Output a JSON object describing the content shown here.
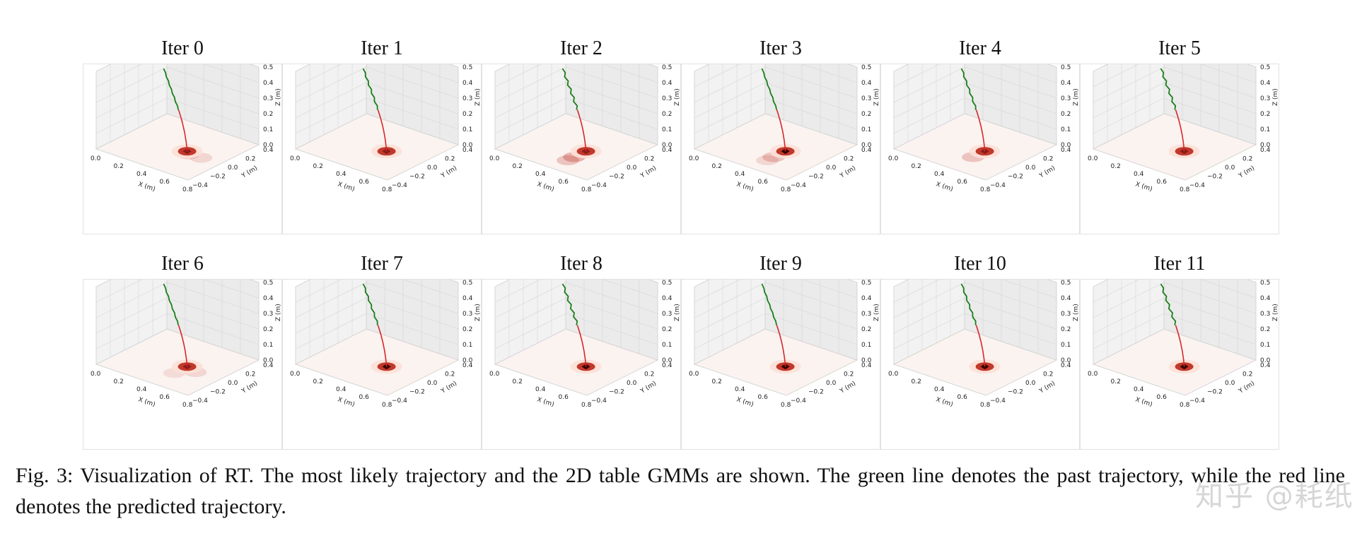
{
  "figure": {
    "panels": [
      {
        "title": "Iter 0",
        "hot": 1,
        "secondary": [
          [
            0.2,
            0.15,
            0.18
          ],
          [
            0.7,
            0.1,
            0.15
          ]
        ]
      },
      {
        "title": "Iter 1",
        "hot": 1,
        "secondary": []
      },
      {
        "title": "Iter 2",
        "hot": 1,
        "secondary": [
          [
            0.0,
            0.55,
            0.35
          ],
          [
            0.0,
            0.85,
            0.25
          ]
        ]
      },
      {
        "title": "Iter 3",
        "hot": 2,
        "secondary": [
          [
            0.0,
            0.55,
            0.25
          ],
          [
            0.0,
            0.85,
            0.15
          ]
        ]
      },
      {
        "title": "Iter 4",
        "hot": 1,
        "secondary": [
          [
            0.0,
            0.55,
            0.25
          ]
        ]
      },
      {
        "title": "Iter 5",
        "hot": 1,
        "secondary": []
      },
      {
        "title": "Iter 6",
        "hot": 1,
        "secondary": [
          [
            0.5,
            0.15,
            0.15
          ],
          [
            0.0,
            0.6,
            0.12
          ]
        ]
      },
      {
        "title": "Iter 7",
        "hot": 2,
        "secondary": []
      },
      {
        "title": "Iter 8",
        "hot": 2,
        "secondary": []
      },
      {
        "title": "Iter 9",
        "hot": 2,
        "secondary": []
      },
      {
        "title": "Iter 10",
        "hot": 2,
        "secondary": []
      },
      {
        "title": "Iter 11",
        "hot": 3,
        "secondary": []
      }
    ],
    "axes": {
      "x_label": "X (m)",
      "y_label": "Y (m)",
      "z_label": "Z (m)",
      "x_ticks": [
        "0.0",
        "0.2",
        "0.4",
        "0.6",
        "0.8"
      ],
      "y_ticks": [
        "0.4",
        "0.2",
        "0.0",
        "−0.2",
        "−0.4"
      ],
      "z_ticks": [
        "0.5",
        "0.4",
        "0.3",
        "0.2",
        "0.1",
        "0.0"
      ]
    },
    "colors": {
      "past_trajectory": "#1a7f1a",
      "predicted_trajectory": "#d62728",
      "gmm_peak": "#3a0000",
      "gmm_mid": "#c0392b",
      "gmm_low": "#fde0d7",
      "pane": "#f2f2f2",
      "grid": "#d5d5d5"
    }
  },
  "caption": {
    "text": "Fig. 3: Visualization of RT. The most likely trajectory and the 2D table GMMs are shown. The green line denotes the past trajectory, while the red line denotes the predicted trajectory."
  },
  "watermark": {
    "text": "知乎 @耗纸"
  }
}
